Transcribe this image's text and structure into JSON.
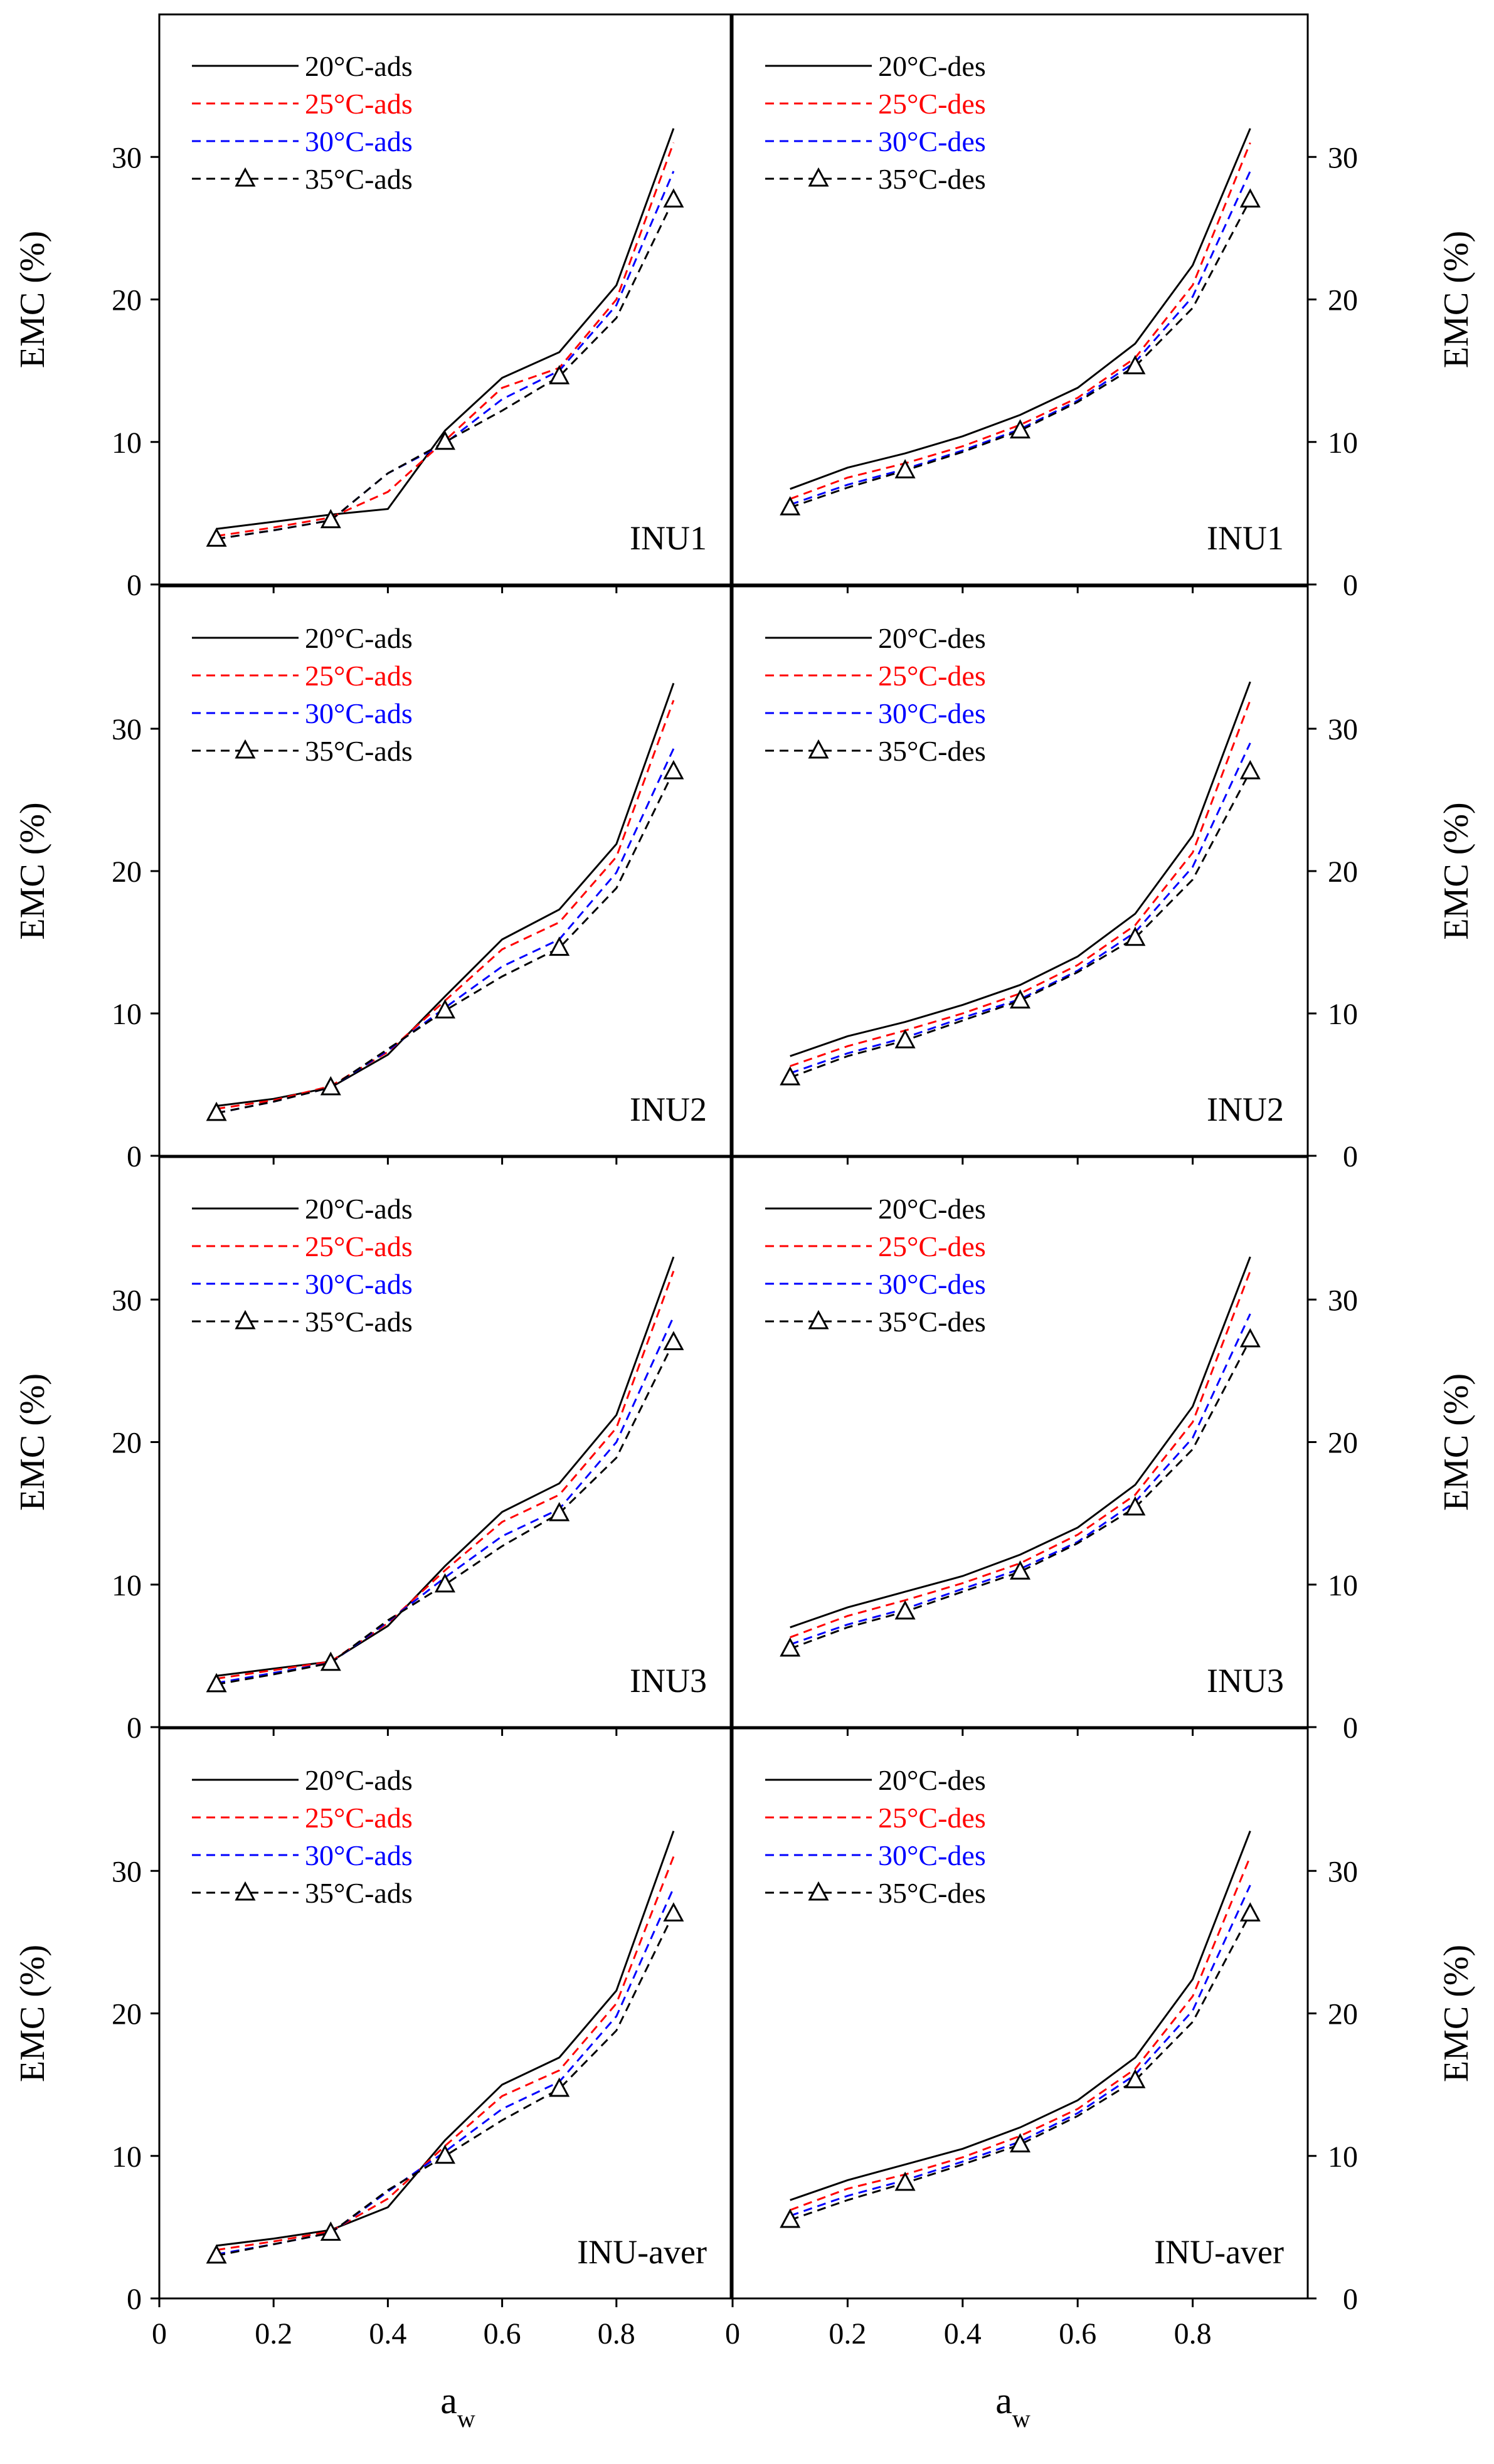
{
  "figure": {
    "y_axis_label": "EMC (%)",
    "x_axis_label_main": "a",
    "x_axis_label_sub": "w",
    "x_ticks": [
      "0",
      "0.2",
      "0.4",
      "0.6",
      "0.8"
    ],
    "y_ticks": [
      "0",
      "10",
      "20",
      "30"
    ]
  },
  "chart_data": [
    {
      "type": "line",
      "panel": "INU1 adsorption",
      "label": "INU1",
      "x": [
        0.1,
        0.2,
        0.3,
        0.4,
        0.5,
        0.6,
        0.7,
        0.8,
        0.9
      ],
      "xlim": [
        0,
        1
      ],
      "ylim": [
        0,
        40
      ],
      "legend_position": "top-left",
      "series": [
        {
          "name": "20°C-ads",
          "color": "#000000",
          "dash": "solid",
          "marker": "none",
          "values": [
            3.9,
            4.4,
            4.9,
            5.3,
            10.8,
            14.5,
            16.3,
            21.0,
            32.0
          ]
        },
        {
          "name": "25°C-ads",
          "color": "#ff0000",
          "dash": "dashed",
          "marker": "none",
          "values": [
            3.4,
            4.0,
            4.7,
            6.5,
            10.1,
            13.8,
            15.2,
            20.0,
            31.0
          ]
        },
        {
          "name": "30°C-ads",
          "color": "#0000ff",
          "dash": "dashed",
          "marker": "none",
          "values": [
            3.2,
            3.8,
            4.5,
            7.8,
            9.9,
            13.0,
            15.0,
            19.6,
            29.0
          ]
        },
        {
          "name": "35°C-ads",
          "color": "#000000",
          "dash": "dashed",
          "marker": "triangle",
          "values": [
            3.2,
            3.8,
            4.5,
            7.8,
            10.0,
            12.2,
            14.6,
            18.7,
            27.0
          ]
        }
      ]
    },
    {
      "type": "line",
      "panel": "INU1 desorption",
      "label": "INU1",
      "x": [
        0.1,
        0.2,
        0.3,
        0.4,
        0.5,
        0.6,
        0.7,
        0.8,
        0.9
      ],
      "xlim": [
        0,
        1
      ],
      "ylim": [
        0,
        40
      ],
      "legend_position": "top-left",
      "series": [
        {
          "name": "20°C-des",
          "color": "#000000",
          "dash": "solid",
          "marker": "none",
          "values": [
            6.7,
            8.2,
            9.2,
            10.4,
            11.9,
            13.8,
            16.9,
            22.4,
            32.0
          ]
        },
        {
          "name": "25°C-des",
          "color": "#ff0000",
          "dash": "dashed",
          "marker": "none",
          "values": [
            6.0,
            7.5,
            8.5,
            9.7,
            11.2,
            13.1,
            15.9,
            21.0,
            31.0
          ]
        },
        {
          "name": "30°C-des",
          "color": "#0000ff",
          "dash": "dashed",
          "marker": "none",
          "values": [
            5.6,
            7.0,
            8.1,
            9.4,
            10.9,
            12.9,
            15.6,
            20.2,
            29.0
          ]
        },
        {
          "name": "35°C-des",
          "color": "#000000",
          "dash": "dashed",
          "marker": "triangle",
          "values": [
            5.4,
            6.8,
            8.0,
            9.3,
            10.8,
            12.8,
            15.3,
            19.4,
            27.0
          ]
        }
      ]
    },
    {
      "type": "line",
      "panel": "INU2 adsorption",
      "label": "INU2",
      "x": [
        0.1,
        0.2,
        0.3,
        0.4,
        0.5,
        0.6,
        0.7,
        0.8,
        0.9
      ],
      "xlim": [
        0,
        1
      ],
      "ylim": [
        0,
        40
      ],
      "legend_position": "top-left",
      "series": [
        {
          "name": "20°C-ads",
          "color": "#000000",
          "dash": "solid",
          "marker": "none",
          "values": [
            3.5,
            4.0,
            4.8,
            7.1,
            11.2,
            15.2,
            17.3,
            21.9,
            33.2
          ]
        },
        {
          "name": "25°C-ads",
          "color": "#ff0000",
          "dash": "dashed",
          "marker": "none",
          "values": [
            3.3,
            3.9,
            4.9,
            7.3,
            10.9,
            14.5,
            16.4,
            21.0,
            32.0
          ]
        },
        {
          "name": "30°C-ads",
          "color": "#0000ff",
          "dash": "dashed",
          "marker": "none",
          "values": [
            3.0,
            3.8,
            4.8,
            7.4,
            10.4,
            13.3,
            15.2,
            19.9,
            28.6
          ]
        },
        {
          "name": "35°C-ads",
          "color": "#000000",
          "dash": "dashed",
          "marker": "triangle",
          "values": [
            3.0,
            3.8,
            4.8,
            7.5,
            10.2,
            12.6,
            14.6,
            18.8,
            27.0
          ]
        }
      ]
    },
    {
      "type": "line",
      "panel": "INU2 desorption",
      "label": "INU2",
      "x": [
        0.1,
        0.2,
        0.3,
        0.4,
        0.5,
        0.6,
        0.7,
        0.8,
        0.9
      ],
      "xlim": [
        0,
        1
      ],
      "ylim": [
        0,
        40
      ],
      "legend_position": "top-left",
      "series": [
        {
          "name": "20°C-des",
          "color": "#000000",
          "dash": "solid",
          "marker": "none",
          "values": [
            7.0,
            8.4,
            9.4,
            10.6,
            12.0,
            14.0,
            17.0,
            22.5,
            33.3
          ]
        },
        {
          "name": "25°C-des",
          "color": "#ff0000",
          "dash": "dashed",
          "marker": "none",
          "values": [
            6.3,
            7.7,
            8.8,
            10.0,
            11.4,
            13.4,
            16.2,
            21.3,
            32.0
          ]
        },
        {
          "name": "30°C-des",
          "color": "#0000ff",
          "dash": "dashed",
          "marker": "none",
          "values": [
            5.8,
            7.2,
            8.3,
            9.7,
            11.0,
            13.0,
            15.7,
            20.3,
            29.0
          ]
        },
        {
          "name": "35°C-des",
          "color": "#000000",
          "dash": "dashed",
          "marker": "triangle",
          "values": [
            5.5,
            7.0,
            8.1,
            9.5,
            10.9,
            12.9,
            15.3,
            19.4,
            27.0
          ]
        }
      ]
    },
    {
      "type": "line",
      "panel": "INU3 adsorption",
      "label": "INU3",
      "x": [
        0.1,
        0.2,
        0.3,
        0.4,
        0.5,
        0.6,
        0.7,
        0.8,
        0.9
      ],
      "xlim": [
        0,
        1
      ],
      "ylim": [
        0,
        40
      ],
      "legend_position": "top-left",
      "series": [
        {
          "name": "20°C-ads",
          "color": "#000000",
          "dash": "solid",
          "marker": "none",
          "values": [
            3.6,
            4.1,
            4.6,
            7.1,
            11.3,
            15.1,
            17.1,
            21.9,
            33.0
          ]
        },
        {
          "name": "25°C-ads",
          "color": "#ff0000",
          "dash": "dashed",
          "marker": "none",
          "values": [
            3.4,
            4.0,
            4.6,
            7.3,
            11.0,
            14.4,
            16.3,
            21.0,
            32.0
          ]
        },
        {
          "name": "30°C-ads",
          "color": "#0000ff",
          "dash": "dashed",
          "marker": "none",
          "values": [
            3.1,
            3.8,
            4.5,
            7.4,
            10.5,
            13.4,
            15.3,
            20.0,
            28.8
          ]
        },
        {
          "name": "35°C-ads",
          "color": "#000000",
          "dash": "dashed",
          "marker": "triangle",
          "values": [
            3.0,
            3.7,
            4.5,
            7.5,
            10.0,
            12.7,
            15.0,
            18.9,
            27.0
          ]
        }
      ]
    },
    {
      "type": "line",
      "panel": "INU3 desorption",
      "label": "INU3",
      "x": [
        0.1,
        0.2,
        0.3,
        0.4,
        0.5,
        0.6,
        0.7,
        0.8,
        0.9
      ],
      "xlim": [
        0,
        1
      ],
      "ylim": [
        0,
        40
      ],
      "legend_position": "top-left",
      "series": [
        {
          "name": "20°C-des",
          "color": "#000000",
          "dash": "solid",
          "marker": "none",
          "values": [
            7.0,
            8.4,
            9.5,
            10.6,
            12.1,
            14.0,
            17.0,
            22.5,
            33.0
          ]
        },
        {
          "name": "25°C-des",
          "color": "#ff0000",
          "dash": "dashed",
          "marker": "none",
          "values": [
            6.3,
            7.8,
            8.9,
            10.1,
            11.5,
            13.5,
            16.3,
            21.4,
            32.0
          ]
        },
        {
          "name": "30°C-des",
          "color": "#0000ff",
          "dash": "dashed",
          "marker": "none",
          "values": [
            5.8,
            7.2,
            8.3,
            9.7,
            11.1,
            13.0,
            15.8,
            20.3,
            29.0
          ]
        },
        {
          "name": "35°C-des",
          "color": "#000000",
          "dash": "dashed",
          "marker": "triangle",
          "values": [
            5.5,
            7.0,
            8.1,
            9.5,
            10.9,
            12.9,
            15.4,
            19.5,
            27.2
          ]
        }
      ]
    },
    {
      "type": "line",
      "panel": "INU-aver adsorption",
      "label": "INU-aver",
      "x": [
        0.1,
        0.2,
        0.3,
        0.4,
        0.5,
        0.6,
        0.7,
        0.8,
        0.9
      ],
      "xlim": [
        0,
        1
      ],
      "ylim": [
        0,
        40
      ],
      "legend_position": "top-left",
      "series": [
        {
          "name": "20°C-ads",
          "color": "#000000",
          "dash": "solid",
          "marker": "none",
          "values": [
            3.7,
            4.2,
            4.8,
            6.4,
            11.1,
            15.0,
            16.9,
            21.6,
            32.8
          ]
        },
        {
          "name": "25°C-ads",
          "color": "#ff0000",
          "dash": "dashed",
          "marker": "none",
          "values": [
            3.4,
            4.0,
            4.7,
            7.0,
            10.7,
            14.2,
            16.0,
            20.7,
            31.0
          ]
        },
        {
          "name": "30°C-ads",
          "color": "#0000ff",
          "dash": "dashed",
          "marker": "none",
          "values": [
            3.1,
            3.8,
            4.6,
            7.5,
            10.3,
            13.3,
            15.2,
            19.8,
            28.8
          ]
        },
        {
          "name": "35°C-ads",
          "color": "#000000",
          "dash": "dashed",
          "marker": "triangle",
          "values": [
            3.0,
            3.8,
            4.6,
            7.6,
            10.0,
            12.5,
            14.7,
            18.8,
            27.0
          ]
        }
      ]
    },
    {
      "type": "line",
      "panel": "INU-aver desorption",
      "label": "INU-aver",
      "x": [
        0.1,
        0.2,
        0.3,
        0.4,
        0.5,
        0.6,
        0.7,
        0.8,
        0.9
      ],
      "xlim": [
        0,
        1
      ],
      "ylim": [
        0,
        40
      ],
      "legend_position": "top-left",
      "series": [
        {
          "name": "20°C-des",
          "color": "#000000",
          "dash": "solid",
          "marker": "none",
          "values": [
            6.9,
            8.3,
            9.4,
            10.5,
            12.0,
            13.9,
            16.9,
            22.4,
            32.8
          ]
        },
        {
          "name": "25°C-des",
          "color": "#ff0000",
          "dash": "dashed",
          "marker": "none",
          "values": [
            6.2,
            7.7,
            8.7,
            9.9,
            11.4,
            13.3,
            16.1,
            21.2,
            31.0
          ]
        },
        {
          "name": "30°C-des",
          "color": "#0000ff",
          "dash": "dashed",
          "marker": "none",
          "values": [
            5.8,
            7.2,
            8.3,
            9.6,
            11.0,
            13.0,
            15.7,
            20.2,
            29.0
          ]
        },
        {
          "name": "35°C-des",
          "color": "#000000",
          "dash": "dashed",
          "marker": "triangle",
          "values": [
            5.5,
            6.9,
            8.1,
            9.4,
            10.8,
            12.8,
            15.3,
            19.4,
            27.0
          ]
        }
      ]
    }
  ]
}
